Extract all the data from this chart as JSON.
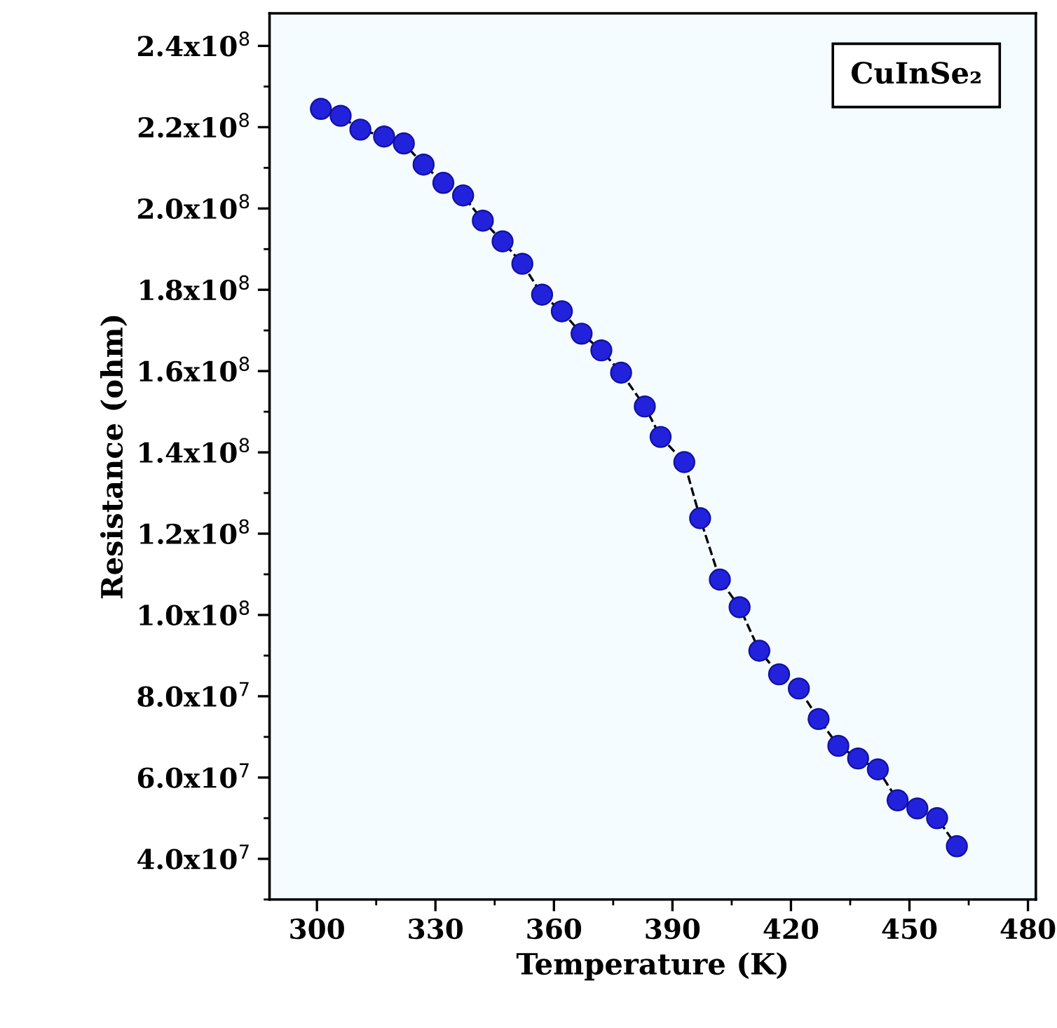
{
  "chart_data": {
    "type": "line",
    "xlabel": "Temperature (K)",
    "ylabel": "Resistance (ohm)",
    "annotations": [
      "CuInSe₂"
    ],
    "xlim": [
      288,
      482
    ],
    "xticks": [
      300,
      330,
      360,
      390,
      420,
      450,
      480
    ],
    "ylim": [
      30000000,
      248000000
    ],
    "yticks": [
      {
        "value": 40000000,
        "label": "4.0x10$^{7}$"
      },
      {
        "value": 60000000,
        "label": "6.0x10$^{7}$"
      },
      {
        "value": 80000000,
        "label": "8.0x10$^{7}$"
      },
      {
        "value": 100000000,
        "label": "1.0x10$^{8}$"
      },
      {
        "value": 120000000,
        "label": "1.2x10$^{8}$"
      },
      {
        "value": 140000000,
        "label": "1.4x10$^{8}$"
      },
      {
        "value": 160000000,
        "label": "1.6x10$^{8}$"
      },
      {
        "value": 180000000,
        "label": "1.8x10$^{8}$"
      },
      {
        "value": 200000000,
        "label": "2.0x10$^{8}$"
      },
      {
        "value": 220000000,
        "label": "2.2x10$^{8}$"
      },
      {
        "value": 240000000,
        "label": "2.4x10$^{8}$"
      }
    ],
    "x": [
      301,
      306,
      311,
      317,
      322,
      327,
      332,
      337,
      342,
      347,
      352,
      357,
      362,
      367,
      372,
      377,
      383,
      387,
      393,
      397,
      402,
      407,
      412,
      417,
      422,
      427,
      432,
      437,
      442,
      447,
      452,
      457,
      462
    ],
    "series": [
      {
        "color": "#2222dd",
        "values": [
          224500000,
          222800000,
          219400000,
          217700000,
          216000000,
          210800000,
          206300000,
          203200000,
          197000000,
          191900000,
          186400000,
          178800000,
          174700000,
          169200000,
          165100000,
          159600000,
          151300000,
          143800000,
          137600000,
          123800000,
          108700000,
          101900000,
          91200000,
          85400000,
          81900000,
          74400000,
          67800000,
          64700000,
          62000000,
          54400000,
          52400000,
          50000000,
          43100000
        ]
      }
    ],
    "marker": "circle",
    "line_style": "dashed",
    "grid": false,
    "legend": false
  }
}
